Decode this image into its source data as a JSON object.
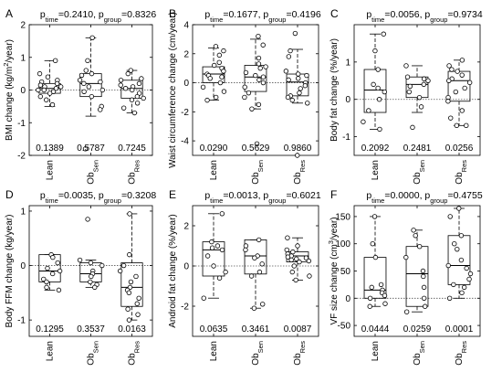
{
  "colors": {
    "axis": "#000000",
    "box": "#000000",
    "zero": "#555555",
    "point_fill": "#ffffff"
  },
  "chart_data": [
    {
      "type": "box",
      "panel": "A",
      "title_parts": [
        "p",
        "time",
        "=0.2410, p",
        "group",
        "=0.8326"
      ],
      "ylabel_parts": [
        "BMI change (kg/m",
        "2",
        "/year)"
      ],
      "ylabel_shift": [
        "none",
        "super",
        "none"
      ],
      "ylim": [
        -2,
        2
      ],
      "yticks": [
        -2,
        -1,
        0,
        1,
        2
      ],
      "ytick_labels": [
        "-2",
        "-1",
        "0",
        "1",
        "2"
      ],
      "categories": [
        [
          "Lean",
          ""
        ],
        [
          "Ob",
          "Sen"
        ],
        [
          "Ob",
          "Res"
        ]
      ],
      "pvalues": [
        "0.1389",
        "0.5787",
        "0.7245"
      ],
      "groups": [
        {
          "box": {
            "whisker_low": -0.5,
            "q1": -0.1,
            "median": 0.05,
            "q3": 0.2,
            "whisker_high": 0.9
          },
          "points": [
            0.9,
            0.5,
            0.4,
            0.3,
            0.25,
            0.2,
            0.15,
            0.1,
            0.1,
            0.05,
            0,
            0,
            -0.05,
            -0.1,
            -0.2,
            -0.3,
            -0.45
          ]
        },
        {
          "box": {
            "whisker_low": -0.8,
            "q1": -0.2,
            "median": 0.2,
            "q3": 0.5,
            "whisker_high": 1.6
          },
          "points": [
            1.6,
            0.9,
            0.6,
            0.5,
            0.45,
            0.3,
            0.25,
            0.2,
            0.1,
            0,
            -0.05,
            -0.2,
            -0.5,
            -0.6,
            -1.8
          ]
        },
        {
          "box": {
            "whisker_low": -0.7,
            "q1": -0.25,
            "median": 0.05,
            "q3": 0.3,
            "whisker_high": 0.6
          },
          "points": [
            0.6,
            0.5,
            0.35,
            0.3,
            0.2,
            0.15,
            0.1,
            0.05,
            0,
            -0.1,
            -0.2,
            -0.25,
            -0.3,
            -0.4,
            -0.55,
            -0.7
          ]
        }
      ]
    },
    {
      "type": "box",
      "panel": "B",
      "title_parts": [
        "p",
        "time",
        "=0.1677, p",
        "group",
        "=0.4196"
      ],
      "ylabel_parts": [
        "Waist circumference change (cm/year)"
      ],
      "ylabel_shift": [
        "none"
      ],
      "ylim": [
        -5,
        4
      ],
      "yticks": [
        -4,
        -2,
        0,
        2,
        4
      ],
      "ytick_labels": [
        "-4",
        "-2",
        "0",
        "2",
        "4"
      ],
      "categories": [
        [
          "Lean",
          ""
        ],
        [
          "Ob",
          "Sen"
        ],
        [
          "Ob",
          "Res"
        ]
      ],
      "pvalues": [
        "0.0290",
        "0.5629",
        "0.9860"
      ],
      "groups": [
        {
          "box": {
            "whisker_low": -1.2,
            "q1": 0.0,
            "median": 0.6,
            "q3": 1.1,
            "whisker_high": 2.4
          },
          "points": [
            2.5,
            2.2,
            1.9,
            1.4,
            1.2,
            1.0,
            0.8,
            0.6,
            0.5,
            0.4,
            0.3,
            0.0,
            -0.3,
            -0.6,
            -1.0,
            -1.2
          ]
        },
        {
          "box": {
            "whisker_low": -1.8,
            "q1": -0.6,
            "median": 0.4,
            "q3": 1.2,
            "whisker_high": 3.0
          },
          "points": [
            3.2,
            2.6,
            1.7,
            1.3,
            1.1,
            1.0,
            0.7,
            0.5,
            0.4,
            0.2,
            0,
            -0.3,
            -0.7,
            -1.0,
            -1.5,
            -1.8,
            -4.2
          ]
        },
        {
          "box": {
            "whisker_low": -1.4,
            "q1": -0.9,
            "median": 0.05,
            "q3": 0.6,
            "whisker_high": 2.3
          },
          "points": [
            3.4,
            2.2,
            1.8,
            0.8,
            0.6,
            0.5,
            0.3,
            0.2,
            0,
            -0.2,
            -0.4,
            -0.7,
            -0.9,
            -1.0,
            -1.2,
            -1.4,
            -5.0
          ]
        }
      ]
    },
    {
      "type": "box",
      "panel": "C",
      "title_parts": [
        "p",
        "time",
        "=0.0056, p",
        "group",
        "=0.9734"
      ],
      "ylabel_parts": [
        "Body fat change (%/year)"
      ],
      "ylabel_shift": [
        "none"
      ],
      "ylim": [
        -1.5,
        2
      ],
      "yticks": [
        -1,
        0,
        1
      ],
      "ytick_labels": [
        "-1",
        "0",
        "1"
      ],
      "categories": [
        [
          "Lean",
          ""
        ],
        [
          "Ob",
          "Sen"
        ],
        [
          "Ob",
          "Res"
        ]
      ],
      "pvalues": [
        "0.2092",
        "0.2481",
        "0.0256"
      ],
      "groups": [
        {
          "box": {
            "whisker_low": -0.8,
            "q1": -0.35,
            "median": 0.25,
            "q3": 0.8,
            "whisker_high": 1.75
          },
          "points": [
            1.75,
            1.3,
            0.8,
            0.4,
            0.3,
            0.2,
            0.0,
            -0.3,
            -0.6,
            -0.8
          ]
        },
        {
          "box": {
            "whisker_low": -0.35,
            "q1": 0.05,
            "median": 0.4,
            "q3": 0.6,
            "whisker_high": 0.9
          },
          "points": [
            0.9,
            0.6,
            0.55,
            0.5,
            0.4,
            0.35,
            0.2,
            0.05,
            -0.2,
            -0.75
          ]
        },
        {
          "box": {
            "whisker_low": -0.7,
            "q1": -0.05,
            "median": 0.5,
            "q3": 0.75,
            "whisker_high": 1.05
          },
          "points": [
            1.05,
            0.9,
            0.8,
            0.75,
            0.65,
            0.55,
            0.5,
            0.45,
            0.3,
            0.2,
            0.05,
            -0.05,
            -0.3,
            -0.5,
            -0.7,
            -0.7
          ]
        }
      ]
    },
    {
      "type": "box",
      "panel": "D",
      "title_parts": [
        "p",
        "time",
        "=0.0035, p",
        "group",
        "=0.3208"
      ],
      "ylabel_parts": [
        "Body FFM change (kg/year)"
      ],
      "ylabel_shift": [
        "none"
      ],
      "ylim": [
        -1.3,
        1.1
      ],
      "yticks": [
        -1,
        0,
        1
      ],
      "ytick_labels": [
        "-1",
        "0",
        "1"
      ],
      "categories": [
        [
          "Lean",
          ""
        ],
        [
          "Ob",
          "Sen"
        ],
        [
          "Ob",
          "Res"
        ]
      ],
      "pvalues": [
        "0.1295",
        "0.3537",
        "0.0163"
      ],
      "groups": [
        {
          "box": {
            "whisker_low": -0.45,
            "q1": -0.3,
            "median": -0.1,
            "q3": 0.2,
            "whisker_high": 0.2
          },
          "points": [
            0.2,
            0.15,
            0.05,
            -0.05,
            -0.1,
            -0.15,
            -0.25,
            -0.3,
            -0.4,
            -0.45
          ]
        },
        {
          "box": {
            "whisker_low": -0.4,
            "q1": -0.3,
            "median": -0.15,
            "q3": 0.05,
            "whisker_high": 0.1
          },
          "points": [
            0.85,
            0.1,
            0.05,
            0.0,
            -0.1,
            -0.15,
            -0.2,
            -0.3,
            -0.35,
            -0.4
          ]
        },
        {
          "box": {
            "whisker_low": -1.0,
            "q1": -0.75,
            "median": -0.4,
            "q3": 0.05,
            "whisker_high": 0.95
          },
          "points": [
            0.95,
            0.2,
            0.0,
            -0.1,
            -0.2,
            -0.3,
            -0.4,
            -0.45,
            -0.5,
            -0.6,
            -0.7,
            -0.8,
            -0.9,
            -1.0
          ]
        }
      ]
    },
    {
      "type": "box",
      "panel": "E",
      "title_parts": [
        "p",
        "time",
        "=0.0013, p",
        "group",
        "=0.6021"
      ],
      "ylabel_parts": [
        "Android fat change (%/year)"
      ],
      "ylabel_shift": [
        "none"
      ],
      "ylim": [
        -3.5,
        3
      ],
      "yticks": [
        -2,
        0,
        2
      ],
      "ytick_labels": [
        "-2",
        "0",
        "2"
      ],
      "categories": [
        [
          "Lean",
          ""
        ],
        [
          "Ob",
          "Sen"
        ],
        [
          "Ob",
          "Res"
        ]
      ],
      "pvalues": [
        "0.0635",
        "0.3461",
        "0.0087"
      ],
      "groups": [
        {
          "box": {
            "whisker_low": -1.6,
            "q1": -0.5,
            "median": 0.8,
            "q3": 1.2,
            "whisker_high": 2.6
          },
          "points": [
            2.6,
            1.2,
            1.0,
            0.9,
            0.8,
            0.5,
            0.0,
            -0.3,
            -0.6,
            -1.6
          ]
        },
        {
          "box": {
            "whisker_low": -2.1,
            "q1": -0.4,
            "median": 0.5,
            "q3": 1.3,
            "whisker_high": 1.3
          },
          "points": [
            1.3,
            1.0,
            0.8,
            0.5,
            0.4,
            0.1,
            -0.3,
            -0.5,
            -1.9,
            -2.1
          ]
        },
        {
          "box": {
            "whisker_low": -0.7,
            "q1": 0.2,
            "median": 0.5,
            "q3": 0.7,
            "whisker_high": 1.4
          },
          "points": [
            1.4,
            1.0,
            0.8,
            0.7,
            0.6,
            0.5,
            0.45,
            0.4,
            0.35,
            0.3,
            0.25,
            0.2,
            0.0,
            -0.3,
            -0.5,
            -0.7
          ]
        }
      ]
    },
    {
      "type": "box",
      "panel": "F",
      "title_parts": [
        "p",
        "time",
        "=0.0000, p",
        "group",
        "=0.4755"
      ],
      "ylabel_parts": [
        "VF size change (cm",
        "3",
        "/year)"
      ],
      "ylabel_shift": [
        "none",
        "super",
        "none"
      ],
      "ylim": [
        -70,
        170
      ],
      "yticks": [
        -50,
        0,
        50,
        100,
        150
      ],
      "ytick_labels": [
        "-50",
        "0",
        "50",
        "100",
        "150"
      ],
      "categories": [
        [
          "Lean",
          ""
        ],
        [
          "Ob",
          "Sen"
        ],
        [
          "Ob",
          "Res"
        ]
      ],
      "pvalues": [
        "0.0444",
        "0.0259",
        "0.0001"
      ],
      "groups": [
        {
          "box": {
            "whisker_low": -15,
            "q1": 0,
            "median": 15,
            "q3": 75,
            "whisker_high": 150
          },
          "points": [
            150,
            100,
            75,
            25,
            20,
            15,
            10,
            5,
            0,
            -10,
            -15
          ]
        },
        {
          "box": {
            "whisker_low": -25,
            "q1": -15,
            "median": 45,
            "q3": 95,
            "whisker_high": 125
          },
          "points": [
            125,
            115,
            95,
            75,
            50,
            40,
            20,
            0,
            -15,
            -25
          ]
        },
        {
          "box": {
            "whisker_low": 0,
            "q1": 25,
            "median": 60,
            "q3": 115,
            "whisker_high": 165
          },
          "points": [
            165,
            150,
            115,
            100,
            90,
            70,
            60,
            55,
            45,
            35,
            25,
            20,
            10,
            0
          ]
        }
      ]
    }
  ]
}
